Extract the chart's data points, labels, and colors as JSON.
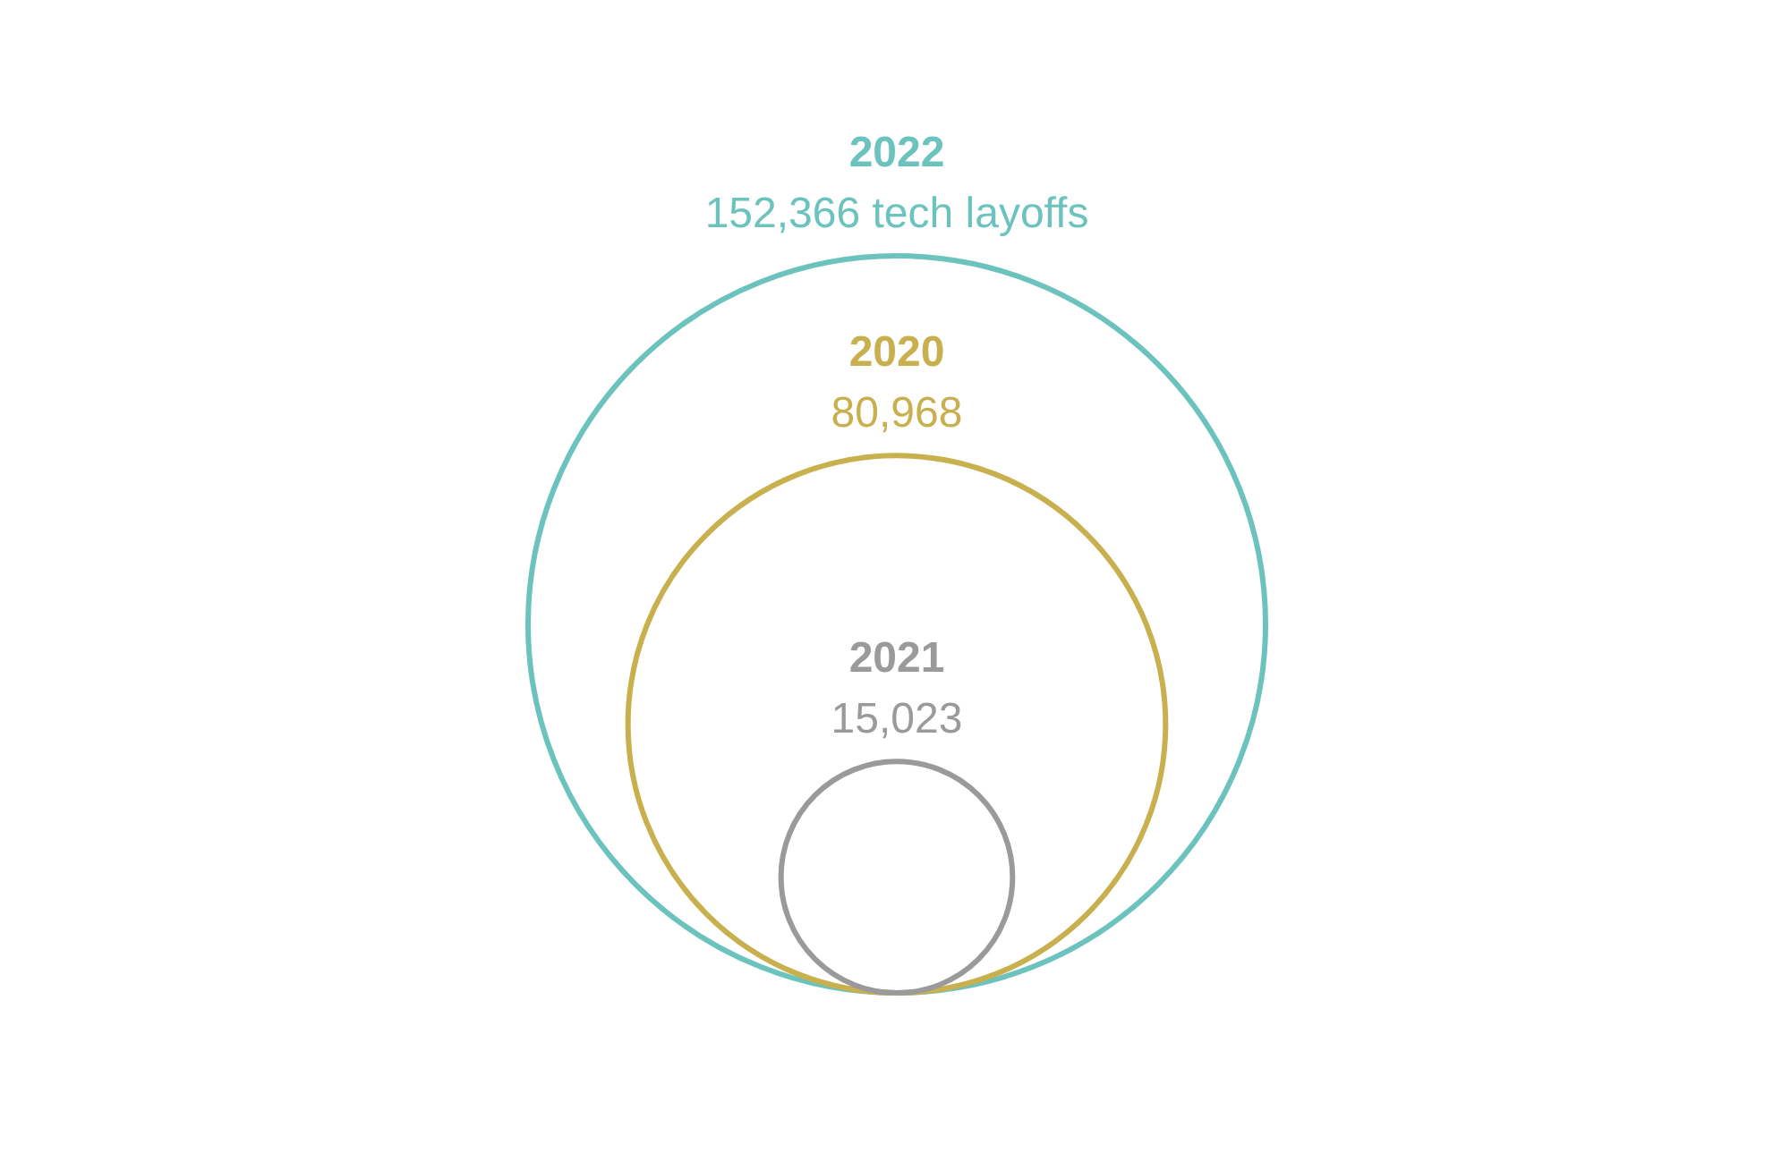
{
  "chart_data": {
    "type": "other",
    "categories": [
      "2022",
      "2020",
      "2021"
    ],
    "values": [
      152366,
      80968,
      15023
    ],
    "value_labels": [
      "152,366 tech layoffs",
      "80,968",
      "15,023"
    ],
    "colors": [
      "#6cc3bd",
      "#c8b04f",
      "#9a9a9a"
    ]
  }
}
